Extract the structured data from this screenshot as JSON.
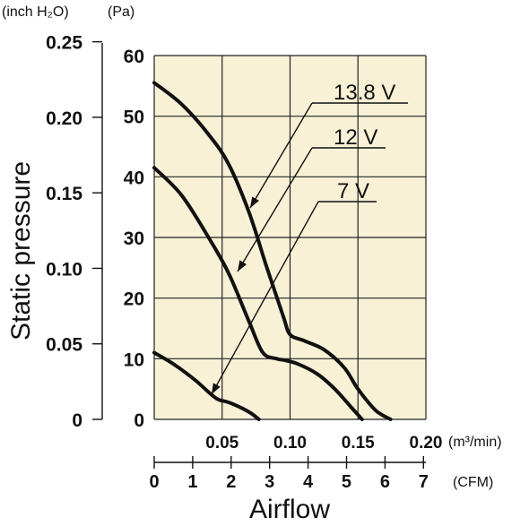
{
  "chart_data": {
    "type": "line",
    "xlabel": "Airflow",
    "ylabel": "Static pressure",
    "x_unit": "(m³/min)",
    "x2_unit": "(CFM)",
    "y_unit": "(Pa)",
    "y2_unit": "(inch H₂O)",
    "xlim": [
      0,
      0.2
    ],
    "ylim": [
      0,
      60
    ],
    "x_ticks": [
      "0.05",
      "0.10",
      "0.15",
      "0.20"
    ],
    "x_tick_values": [
      0.05,
      0.1,
      0.15,
      0.2
    ],
    "y_ticks": [
      "0",
      "10",
      "20",
      "30",
      "40",
      "50",
      "60"
    ],
    "y_tick_values": [
      0,
      10,
      20,
      30,
      40,
      50,
      60
    ],
    "x2_ticks": [
      "0",
      "1",
      "2",
      "3",
      "4",
      "5",
      "6",
      "7"
    ],
    "x2_tick_values": [
      0,
      1,
      2,
      3,
      4,
      5,
      6,
      7
    ],
    "y2_ticks": [
      "0",
      "0.05",
      "0.10",
      "0.15",
      "0.20",
      "0.25"
    ],
    "y2_tick_values": [
      0,
      0.05,
      0.1,
      0.15,
      0.2,
      0.25
    ],
    "grid": true,
    "background": "#f8f1d6",
    "series": [
      {
        "name": "13.8 V",
        "x": [
          0,
          0.02,
          0.04,
          0.055,
          0.07,
          0.083,
          0.095,
          0.1,
          0.11,
          0.125,
          0.14,
          0.15,
          0.163,
          0.174
        ],
        "y": [
          55.5,
          52,
          47,
          42,
          34,
          25,
          17,
          14,
          13,
          11.5,
          8.5,
          5,
          1.5,
          0
        ]
      },
      {
        "name": "12 V",
        "x": [
          0,
          0.02,
          0.04,
          0.055,
          0.07,
          0.08,
          0.09,
          0.095,
          0.105,
          0.12,
          0.133,
          0.145,
          0.153
        ],
        "y": [
          41.5,
          37,
          30,
          24,
          16,
          11,
          10,
          9.8,
          9.2,
          7.5,
          5,
          2,
          0
        ]
      },
      {
        "name": "7 V",
        "x": [
          0,
          0.015,
          0.03,
          0.04,
          0.047,
          0.055,
          0.065,
          0.072,
          0.077
        ],
        "y": [
          11,
          9,
          6.5,
          4.5,
          3.3,
          2.8,
          1.8,
          0.9,
          0
        ]
      }
    ]
  }
}
